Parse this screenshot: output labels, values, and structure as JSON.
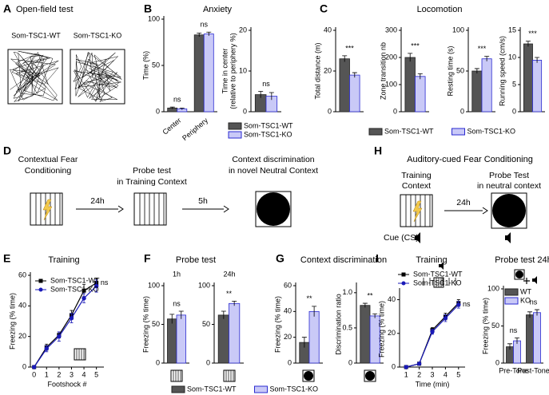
{
  "panels": {
    "a": "A",
    "b": "B",
    "c": "C",
    "d": "D",
    "e": "E",
    "f": "F",
    "g": "G",
    "h": "H",
    "i": "I"
  },
  "open_field": {
    "title": "Open-field test",
    "wt": "Som-TSC1-WT",
    "ko": "Som-TSC1-KO"
  },
  "diagram": {
    "d_step1": [
      "Contextual Fear",
      "Conditioning"
    ],
    "d_delay1": "24h",
    "d_step2": [
      "Probe test",
      "in Training Context"
    ],
    "d_delay2": "5h",
    "d_step3": [
      "Context discrimination",
      "in novel Neutral Context"
    ],
    "h_title": "Auditory-cued Fear Conditioning",
    "h_step1": [
      "Training",
      "Context"
    ],
    "h_delay": "24h",
    "h_step2": [
      "Probe Test",
      "in neutral context"
    ],
    "h_cue": "Cue (CS)"
  },
  "chart_data": [
    {
      "type": "bar",
      "title": "Anxiety",
      "ylabel": [
        "Time (%)"
      ],
      "categories": [
        "Center",
        "Periphery"
      ],
      "series": [
        {
          "color": "#555555",
          "edgecolor": "#222222",
          "values": [
            4,
            83
          ],
          "errors": [
            1,
            2
          ]
        },
        {
          "color": "#c9c9f7",
          "edgecolor": "#2a2ad0",
          "values": [
            3,
            84
          ],
          "errors": [
            1,
            2
          ]
        }
      ],
      "ylim": [
        0,
        100
      ],
      "yticks": [
        0,
        50,
        100
      ],
      "annotations": [
        "ns",
        "ns"
      ]
    },
    {
      "type": "bar",
      "ylabel": [
        "Time in center",
        "(relative to periphery %)"
      ],
      "categories": [
        null
      ],
      "series": [
        {
          "name": "Som-TSC1-WT",
          "color": "#555555",
          "edgecolor": "#222222",
          "values": [
            4.2
          ],
          "errors": [
            0.8
          ]
        },
        {
          "name": "Som-TSC1-KO",
          "color": "#c9c9f7",
          "edgecolor": "#2a2ad0",
          "values": [
            3.8
          ],
          "errors": [
            0.9
          ]
        }
      ],
      "ylim": [
        0,
        20
      ],
      "yticks": [
        0,
        10,
        20
      ],
      "annotations": [
        "ns"
      ],
      "legend": true
    },
    {
      "type": "bar",
      "title": "Locomotion",
      "ylabel": [
        "Total distance (m)"
      ],
      "categories": [
        null
      ],
      "series": [
        {
          "color": "#555555",
          "edgecolor": "#222222",
          "values": [
            26
          ],
          "errors": [
            1.5
          ]
        },
        {
          "color": "#c9c9f7",
          "edgecolor": "#2a2ad0",
          "values": [
            18
          ],
          "errors": [
            1.2
          ]
        }
      ],
      "ylim": [
        0,
        40
      ],
      "yticks": [
        0,
        20,
        40
      ],
      "annotations": [
        "***"
      ]
    },
    {
      "type": "bar",
      "ylabel": [
        "Zone transition nb"
      ],
      "categories": [
        null
      ],
      "series": [
        {
          "name": "Som-TSC1-WT",
          "color": "#555555",
          "edgecolor": "#222222",
          "values": [
            200
          ],
          "errors": [
            15
          ]
        },
        {
          "name": "Som-TSC1-KO",
          "color": "#c9c9f7",
          "edgecolor": "#2a2ad0",
          "values": [
            130
          ],
          "errors": [
            10
          ]
        }
      ],
      "ylim": [
        0,
        300
      ],
      "yticks": [
        0,
        100,
        200,
        300
      ],
      "annotations": [
        "***"
      ],
      "legend": true
    },
    {
      "type": "bar",
      "ylabel": [
        "Resting time (s)"
      ],
      "categories": [
        null
      ],
      "series": [
        {
          "color": "#555555",
          "edgecolor": "#222222",
          "values": [
            50
          ],
          "errors": [
            3
          ]
        },
        {
          "color": "#c9c9f7",
          "edgecolor": "#2a2ad0",
          "values": [
            65
          ],
          "errors": [
            3
          ]
        }
      ],
      "ylim": [
        0,
        100
      ],
      "yticks": [
        0,
        50,
        100
      ],
      "annotations": [
        "***"
      ]
    },
    {
      "type": "bar",
      "ylabel": [
        "Running speed (cm/s)"
      ],
      "categories": [
        null
      ],
      "series": [
        {
          "color": "#555555",
          "edgecolor": "#222222",
          "values": [
            12.5
          ],
          "errors": [
            0.5
          ]
        },
        {
          "color": "#c9c9f7",
          "edgecolor": "#2a2ad0",
          "values": [
            9.5
          ],
          "errors": [
            0.5
          ]
        }
      ],
      "ylim": [
        0,
        15
      ],
      "yticks": [
        0,
        5,
        10,
        15
      ],
      "annotations": [
        "***"
      ]
    },
    {
      "type": "line",
      "title": "Training",
      "ylabel": [
        "Freezing (% time)"
      ],
      "xlabel": "Footshock #",
      "x": [
        0,
        1,
        2,
        3,
        4,
        5
      ],
      "series": [
        {
          "name": "Som-TSC1-WT",
          "color": "#000000",
          "marker": "square",
          "values": [
            0,
            13,
            21,
            34,
            50,
            55
          ],
          "errors": [
            0,
            2,
            2,
            3,
            4,
            3
          ]
        },
        {
          "name": "Som-TSC1-KO",
          "color": "#1a1ab8",
          "marker": "circle",
          "values": [
            0,
            12,
            20,
            32,
            45,
            53
          ],
          "errors": [
            0,
            2,
            3,
            3,
            3,
            4
          ]
        }
      ],
      "xlim": [
        -0.3,
        5.6
      ],
      "xticks": [
        0,
        1,
        2,
        3,
        4,
        5
      ],
      "ylim": [
        0,
        60
      ],
      "yticks": [
        0,
        20,
        40,
        60
      ],
      "annotations": [
        "ns"
      ],
      "legend": true
    },
    {
      "type": "bar",
      "title": "Probe test",
      "subtitle": "1h",
      "ylabel": [
        "Freezing (% time)"
      ],
      "categories": [
        null
      ],
      "series": [
        {
          "color": "#555555",
          "edgecolor": "#222222",
          "values": [
            57
          ],
          "errors": [
            6
          ]
        },
        {
          "color": "#c9c9f7",
          "edgecolor": "#2a2ad0",
          "values": [
            62
          ],
          "errors": [
            5
          ]
        }
      ],
      "ylim": [
        0,
        100
      ],
      "yticks": [
        0,
        50,
        100
      ],
      "annotations": [
        "ns"
      ]
    },
    {
      "type": "bar",
      "subtitle": "24h",
      "categories": [
        null
      ],
      "series": [
        {
          "color": "#555555",
          "edgecolor": "#222222",
          "values": [
            62
          ],
          "errors": [
            5
          ]
        },
        {
          "color": "#c9c9f7",
          "edgecolor": "#2a2ad0",
          "values": [
            77
          ],
          "errors": [
            3
          ]
        }
      ],
      "ylim": [
        0,
        100
      ],
      "yticks": [
        0,
        50,
        100
      ],
      "annotations": [
        "**"
      ]
    },
    {
      "type": "bar",
      "title": "Context discrimination",
      "ylabel": [
        "Freezing (% time)"
      ],
      "categories": [
        null
      ],
      "series": [
        {
          "name": "Som-TSC1-WT",
          "color": "#555555",
          "edgecolor": "#222222",
          "values": [
            16
          ],
          "errors": [
            4
          ]
        },
        {
          "name": "Som-TSC1-KO",
          "color": "#c9c9f7",
          "edgecolor": "#2a2ad0",
          "values": [
            40
          ],
          "errors": [
            4
          ]
        }
      ],
      "ylim": [
        0,
        60
      ],
      "yticks": [
        0,
        20,
        40,
        60
      ],
      "annotations": [
        "**"
      ],
      "legend": true
    },
    {
      "type": "bar",
      "ylabel": [
        "Discrimination ratio"
      ],
      "categories": [
        null
      ],
      "series": [
        {
          "color": "#555555",
          "edgecolor": "#222222",
          "values": [
            0.82
          ],
          "errors": [
            0.03
          ]
        },
        {
          "color": "#c9c9f7",
          "edgecolor": "#2a2ad0",
          "values": [
            0.67
          ],
          "errors": [
            0.03
          ]
        }
      ],
      "ylim": [
        0,
        1.1
      ],
      "yticks": [
        0,
        {
          "value": 0.5,
          "label": "0.5"
        },
        {
          "value": 1,
          "label": "1.0"
        }
      ],
      "annotations": [
        "**"
      ]
    },
    {
      "type": "line",
      "title": "Training",
      "ylabel": [
        "Freezing (% time)"
      ],
      "xlabel": "Time (min)",
      "x": [
        1,
        2,
        3,
        4,
        5
      ],
      "series": [
        {
          "name": "Som-TSC1-WT",
          "color": "#000000",
          "marker": "square",
          "values": [
            0,
            2,
            22,
            30,
            38
          ],
          "errors": [
            0,
            0.5,
            1.5,
            2,
            2
          ]
        },
        {
          "name": "Som-TSC1-KO",
          "color": "#1a1ab8",
          "marker": "circle",
          "values": [
            0,
            2,
            21,
            29,
            37
          ],
          "errors": [
            0,
            0.5,
            1.5,
            2,
            2
          ]
        }
      ],
      "xlim": [
        0.5,
        5.5
      ],
      "xticks": [
        1,
        2,
        3,
        4,
        5
      ],
      "ylim": [
        0,
        45
      ],
      "yticks": [
        0,
        20,
        40
      ],
      "annotations": [
        "ns"
      ],
      "legend": true
    },
    {
      "type": "bar",
      "title": "Probe test 24h",
      "ylabel": [
        "Freezing (% time)"
      ],
      "categories": [
        "Pre-Tone",
        "Post-Tone"
      ],
      "series": [
        {
          "name": "WT",
          "color": "#555555",
          "edgecolor": "#222222",
          "values": [
            22,
            65
          ],
          "errors": [
            4,
            4
          ]
        },
        {
          "name": "KO",
          "color": "#c9c9f7",
          "edgecolor": "#2a2ad0",
          "values": [
            30,
            68
          ],
          "errors": [
            4,
            4
          ]
        }
      ],
      "ylim": [
        0,
        100
      ],
      "yticks": [
        0,
        50,
        100
      ],
      "annotations": [
        "ns",
        "ns"
      ],
      "legend": true
    }
  ]
}
